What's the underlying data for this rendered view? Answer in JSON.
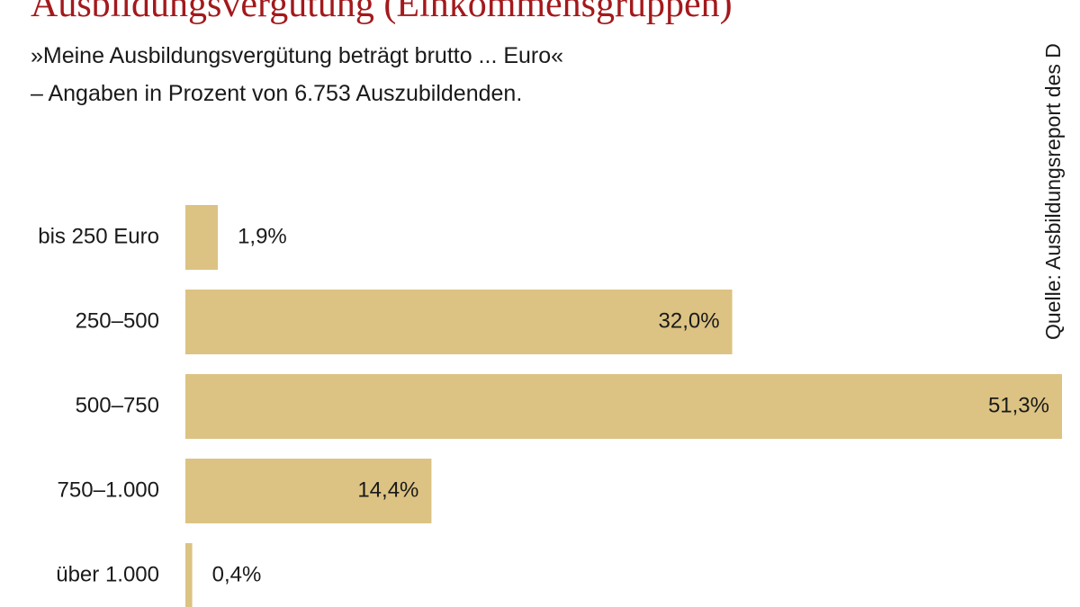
{
  "chart_data": {
    "type": "bar",
    "orientation": "horizontal",
    "title": "Ausbildungsvergütung (Einkommensgruppen)",
    "subtitle": [
      "»Meine Ausbildungsvergütung beträgt brutto ... Euro«",
      "– Angaben in Prozent von 6.753 Auszubildenden."
    ],
    "source": "Quelle: Ausbildungsreport des D",
    "categories": [
      "bis 250 Euro",
      "250–500",
      "500–750",
      "750–1.000",
      "über 1.000"
    ],
    "values": [
      1.9,
      32.0,
      51.3,
      14.4,
      0.4
    ],
    "value_labels": [
      "1,9%",
      "32,0%",
      "51,3%",
      "14,4%",
      "0,4%"
    ],
    "color": "#dcc383"
  }
}
